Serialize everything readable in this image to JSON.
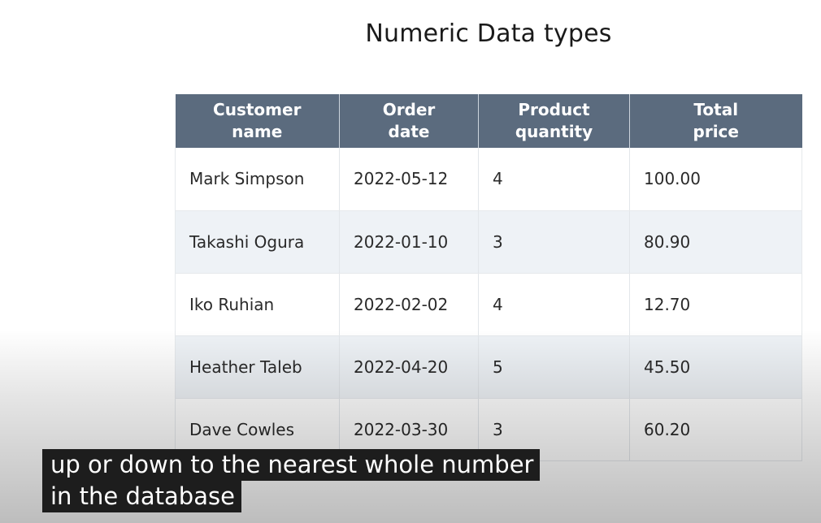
{
  "slide": {
    "title": "Numeric Data types"
  },
  "table": {
    "headers": [
      "Customer\nname",
      "Order\ndate",
      "Product\nquantity",
      "Total\nprice"
    ],
    "rows": [
      [
        "Mark Simpson",
        "2022-05-12",
        "4",
        "100.00"
      ],
      [
        "Takashi Ogura",
        "2022-01-10",
        "3",
        "80.90"
      ],
      [
        "Iko Ruhian",
        "2022-02-02",
        "4",
        "12.70"
      ],
      [
        "Heather Taleb",
        "2022-04-20",
        "5",
        "45.50"
      ],
      [
        "Dave Cowles",
        "2022-03-30",
        "3",
        "60.20"
      ]
    ]
  },
  "captions": {
    "line1": "up or down to the nearest whole number",
    "line2": "in the database"
  },
  "colors": {
    "header_bg": "#5b6b7e",
    "stripe_bg": "#eef2f6",
    "caption_bg": "#1d1d1d"
  }
}
